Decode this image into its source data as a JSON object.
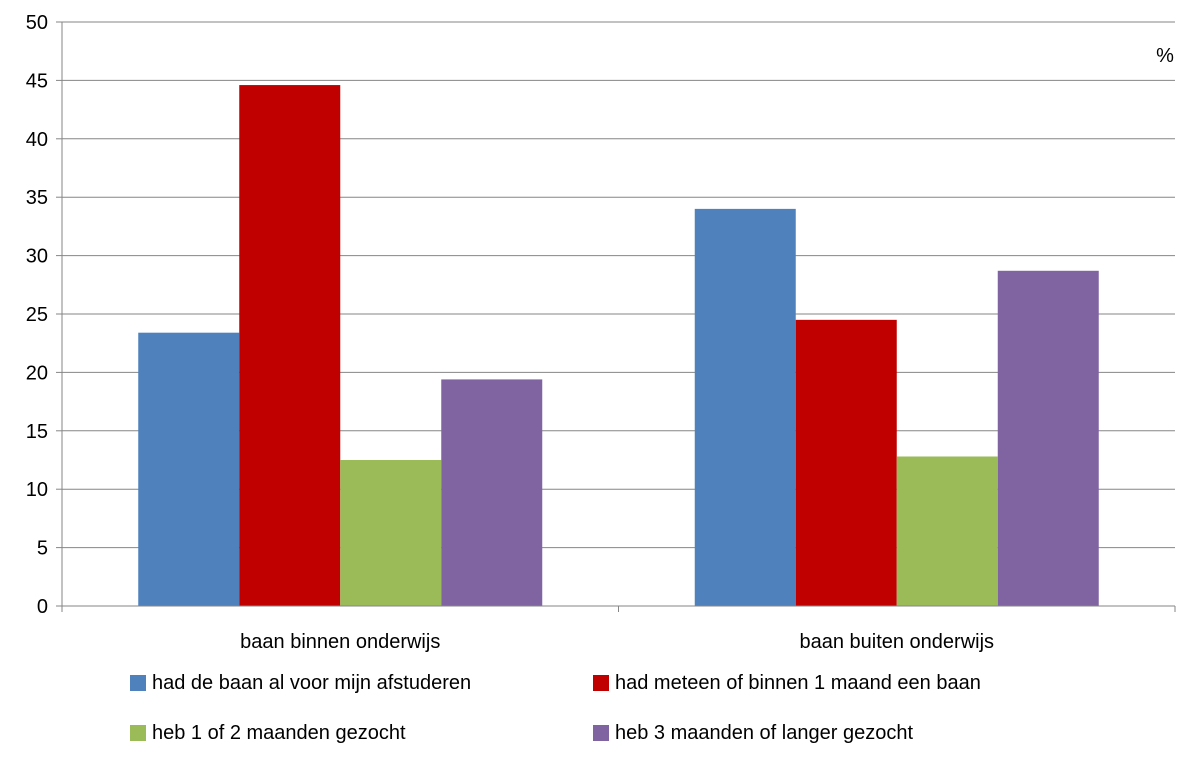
{
  "chart_data": {
    "type": "bar",
    "categories": [
      "baan binnen onderwijs",
      "baan buiten onderwijs"
    ],
    "series": [
      {
        "name": "had de baan al voor mijn afstuderen",
        "values": [
          23.4,
          34.0
        ],
        "color": "#4F81BD"
      },
      {
        "name": "had meteen of binnen 1 maand een baan",
        "values": [
          44.6,
          24.5
        ],
        "color": "#C00000"
      },
      {
        "name": "heb 1 of 2 maanden gezocht",
        "values": [
          12.5,
          12.8
        ],
        "color": "#9BBB59"
      },
      {
        "name": "heb 3 maanden of langer gezocht",
        "values": [
          19.4,
          28.7
        ],
        "color": "#8064A2"
      }
    ],
    "ylim": [
      0,
      50
    ],
    "yticks": [
      0,
      5,
      10,
      15,
      20,
      25,
      30,
      35,
      40,
      45,
      50
    ],
    "yunit": "%",
    "grid": true,
    "legend_position": "bottom"
  }
}
